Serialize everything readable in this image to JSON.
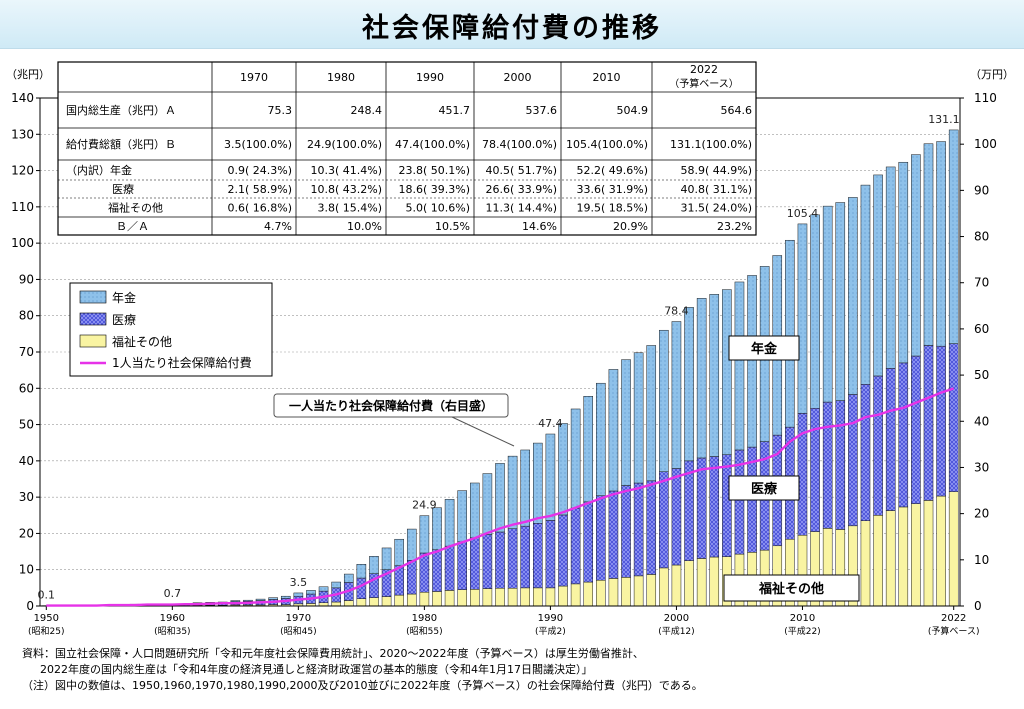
{
  "title": "社会保障給付費の推移",
  "chart_data": {
    "type": "bar",
    "stacked": true,
    "title": "社会保障給付費の推移",
    "y_left_unit": "（兆円）",
    "y_right_unit": "（万円）",
    "ylim": [
      0,
      140
    ],
    "ylim_right": [
      0,
      110
    ],
    "yticks": [
      0,
      10,
      20,
      30,
      40,
      50,
      60,
      70,
      80,
      90,
      100,
      110,
      120,
      130,
      140
    ],
    "yticks_right": [
      0,
      10,
      20,
      30,
      40,
      50,
      60,
      70,
      80,
      90,
      100,
      110
    ],
    "grid": true,
    "legend_position": "left",
    "x": [
      1950,
      1951,
      1952,
      1953,
      1954,
      1955,
      1956,
      1957,
      1958,
      1959,
      1960,
      1961,
      1962,
      1963,
      1964,
      1965,
      1966,
      1967,
      1968,
      1969,
      1970,
      1971,
      1972,
      1973,
      1974,
      1975,
      1976,
      1977,
      1978,
      1979,
      1980,
      1981,
      1982,
      1983,
      1984,
      1985,
      1986,
      1987,
      1988,
      1989,
      1990,
      1991,
      1992,
      1993,
      1994,
      1995,
      1996,
      1997,
      1998,
      1999,
      2000,
      2001,
      2002,
      2003,
      2004,
      2005,
      2006,
      2007,
      2008,
      2009,
      2010,
      2011,
      2012,
      2013,
      2014,
      2015,
      2016,
      2017,
      2018,
      2019,
      2020,
      2021,
      2022
    ],
    "x_ticks": [
      {
        "year": 1950,
        "label": "1950",
        "sub": "(昭和25)"
      },
      {
        "year": 1960,
        "label": "1960",
        "sub": "(昭和35)"
      },
      {
        "year": 1970,
        "label": "1970",
        "sub": "(昭和45)"
      },
      {
        "year": 1980,
        "label": "1980",
        "sub": "(昭和55)"
      },
      {
        "year": 1990,
        "label": "1990",
        "sub": "(平成2)"
      },
      {
        "year": 2000,
        "label": "2000",
        "sub": "(平成12)"
      },
      {
        "year": 2010,
        "label": "2010",
        "sub": "(平成22)"
      },
      {
        "year": 2022,
        "label": "2022",
        "sub": "(予算ベース)"
      }
    ],
    "series": [
      {
        "name": "年金",
        "color": "#8ec1ea",
        "pattern": "dots",
        "values": [
          0.0,
          0.0,
          0.0,
          0.0,
          0.0,
          0.0,
          0.0,
          0.1,
          0.1,
          0.1,
          0.1,
          0.1,
          0.2,
          0.2,
          0.2,
          0.3,
          0.3,
          0.4,
          0.5,
          0.6,
          0.9,
          1.0,
          1.2,
          1.6,
          2.3,
          3.8,
          4.8,
          6.0,
          7.3,
          8.6,
          10.3,
          11.6,
          12.9,
          14.1,
          15.1,
          16.8,
          18.9,
          20.0,
          21.0,
          22.1,
          23.8,
          25.2,
          27.3,
          29.1,
          31.0,
          33.5,
          34.7,
          35.9,
          37.3,
          39.0,
          40.5,
          42.3,
          44.0,
          44.7,
          45.5,
          46.3,
          47.3,
          48.3,
          49.5,
          51.5,
          52.2,
          53.3,
          54.0,
          54.6,
          54.3,
          54.9,
          55.4,
          55.5,
          55.3,
          55.5,
          55.6,
          56.4,
          58.9
        ]
      },
      {
        "name": "医療",
        "color": "#4b52d8",
        "pattern": "crosshatch",
        "values": [
          0.1,
          0.1,
          0.1,
          0.1,
          0.2,
          0.2,
          0.2,
          0.3,
          0.3,
          0.3,
          0.4,
          0.4,
          0.5,
          0.6,
          0.7,
          0.9,
          1.0,
          1.2,
          1.4,
          1.7,
          2.1,
          2.6,
          3.2,
          3.9,
          5.0,
          5.7,
          6.6,
          7.4,
          8.1,
          9.3,
          10.8,
          11.5,
          12.2,
          13.2,
          14.2,
          14.9,
          15.5,
          16.4,
          17.0,
          17.8,
          18.6,
          19.6,
          20.9,
          22.1,
          23.3,
          24.1,
          25.3,
          25.6,
          25.8,
          26.5,
          26.6,
          27.5,
          27.7,
          27.7,
          28.1,
          28.7,
          29.0,
          29.9,
          30.5,
          30.9,
          33.6,
          34.0,
          34.8,
          35.5,
          36.2,
          37.6,
          38.4,
          39.2,
          39.7,
          40.7,
          42.7,
          41.3,
          40.8
        ]
      },
      {
        "name": "福祉その他",
        "color": "#f9f4a2",
        "pattern": "plain",
        "values": [
          0.0,
          0.0,
          0.0,
          0.0,
          0.1,
          0.1,
          0.1,
          0.1,
          0.1,
          0.1,
          0.1,
          0.1,
          0.2,
          0.2,
          0.2,
          0.3,
          0.3,
          0.3,
          0.4,
          0.4,
          0.6,
          0.7,
          0.9,
          1.1,
          1.5,
          2.0,
          2.3,
          2.6,
          3.0,
          3.3,
          3.8,
          4.0,
          4.3,
          4.5,
          4.6,
          4.8,
          4.9,
          4.9,
          5.0,
          5.0,
          5.0,
          5.5,
          6.1,
          6.6,
          7.1,
          7.6,
          7.9,
          8.3,
          8.7,
          10.5,
          11.3,
          12.5,
          13.1,
          13.5,
          13.6,
          14.3,
          14.8,
          15.4,
          16.6,
          18.4,
          19.5,
          20.5,
          21.4,
          21.1,
          22.1,
          23.5,
          25.0,
          26.3,
          27.3,
          28.2,
          29.1,
          30.3,
          31.5
        ]
      }
    ],
    "line_series": {
      "name": "1人当たり社会保障給付費",
      "color": "#e632e8",
      "axis": "right",
      "values": [
        0.1,
        0.1,
        0.1,
        0.1,
        0.1,
        0.2,
        0.2,
        0.2,
        0.3,
        0.3,
        0.3,
        0.4,
        0.4,
        0.5,
        0.6,
        0.6,
        0.7,
        0.8,
        0.9,
        1.1,
        1.4,
        1.6,
        2.0,
        2.5,
        3.3,
        4.4,
        5.8,
        7.0,
        8.3,
        9.6,
        11.0,
        11.8,
        12.9,
        13.8,
        14.7,
        15.8,
        16.8,
        17.6,
        18.2,
        19.0,
        19.5,
        20.3,
        21.3,
        22.3,
        23.3,
        24.2,
        24.9,
        25.5,
        26.3,
        27.1,
        28.0,
        28.8,
        29.6,
        29.9,
        30.2,
        30.6,
        31.2,
        31.8,
        32.9,
        35.6,
        37.4,
        38.3,
        38.8,
        39.1,
        39.6,
        40.9,
        41.4,
        42.3,
        42.9,
        44.0,
        45.1,
        46.2,
        47.1
      ]
    },
    "bar_labels": [
      {
        "year": 1950,
        "text": "0.1"
      },
      {
        "year": 1960,
        "text": "0.7"
      },
      {
        "year": 1970,
        "text": "3.5"
      },
      {
        "year": 1980,
        "text": "24.9"
      },
      {
        "year": 1990,
        "text": "47.4"
      },
      {
        "year": 2000,
        "text": "78.4"
      },
      {
        "year": 2010,
        "text": "105.4"
      },
      {
        "year": 2022,
        "text": "131.1"
      }
    ],
    "region_labels": {
      "pension": "年金",
      "medical": "医療",
      "welfare": "福祉その他"
    },
    "callout": "一人当たり社会保障給付費（右目盛）",
    "legend": [
      "年金",
      "医療",
      "福祉その他",
      "1人当たり社会保障給付費"
    ]
  },
  "table": {
    "headers": [
      "",
      "1970",
      "1980",
      "1990",
      "2000",
      "2010",
      "2022"
    ],
    "header_sub": "（予算ベース）",
    "rows": [
      {
        "label": "国内総生産（兆円）Ａ",
        "cells": [
          "75.3",
          "248.4",
          "451.7",
          "537.6",
          "504.9",
          "564.6"
        ]
      },
      {
        "label": "給付費総額（兆円）Ｂ",
        "cells": [
          "3.5(100.0%)",
          "24.9(100.0%)",
          "47.4(100.0%)",
          "78.4(100.0%)",
          "105.4(100.0%)",
          "131.1(100.0%)"
        ]
      },
      {
        "label": "（内訳）年金",
        "cells": [
          "0.9( 24.3%)",
          "10.3( 41.4%)",
          "23.8( 50.1%)",
          "40.5( 51.7%)",
          "52.2( 49.6%)",
          "58.9( 44.9%)"
        ]
      },
      {
        "label": "医療",
        "cells": [
          "2.1( 58.9%)",
          "10.8( 43.2%)",
          "18.6( 39.3%)",
          "26.6( 33.9%)",
          "33.6( 31.9%)",
          "40.8( 31.1%)"
        ]
      },
      {
        "label": "福祉その他",
        "cells": [
          "0.6( 16.8%)",
          "3.8( 15.4%)",
          "5.0( 10.6%)",
          "11.3( 14.4%)",
          "19.5( 18.5%)",
          "31.5( 24.0%)"
        ]
      },
      {
        "label": "Ｂ／Ａ",
        "cells": [
          "4.7%",
          "10.0%",
          "10.5%",
          "14.6%",
          "20.9%",
          "23.2%"
        ]
      }
    ]
  },
  "notes": [
    "資料：国立社会保障・人口問題研究所「令和元年度社会保障費用統計」、2020～2022年度（予算ベース）は厚生労働省推計、",
    "2022年度の国内総生産は「令和4年度の経済見通しと経済財政運営の基本的態度（令和4年1月17日閣議決定）」",
    "（注）図中の数値は、1950,1960,1970,1980,1990,2000及び2010並びに2022年度（予算ベース）の社会保障給付費（兆円）である。"
  ]
}
